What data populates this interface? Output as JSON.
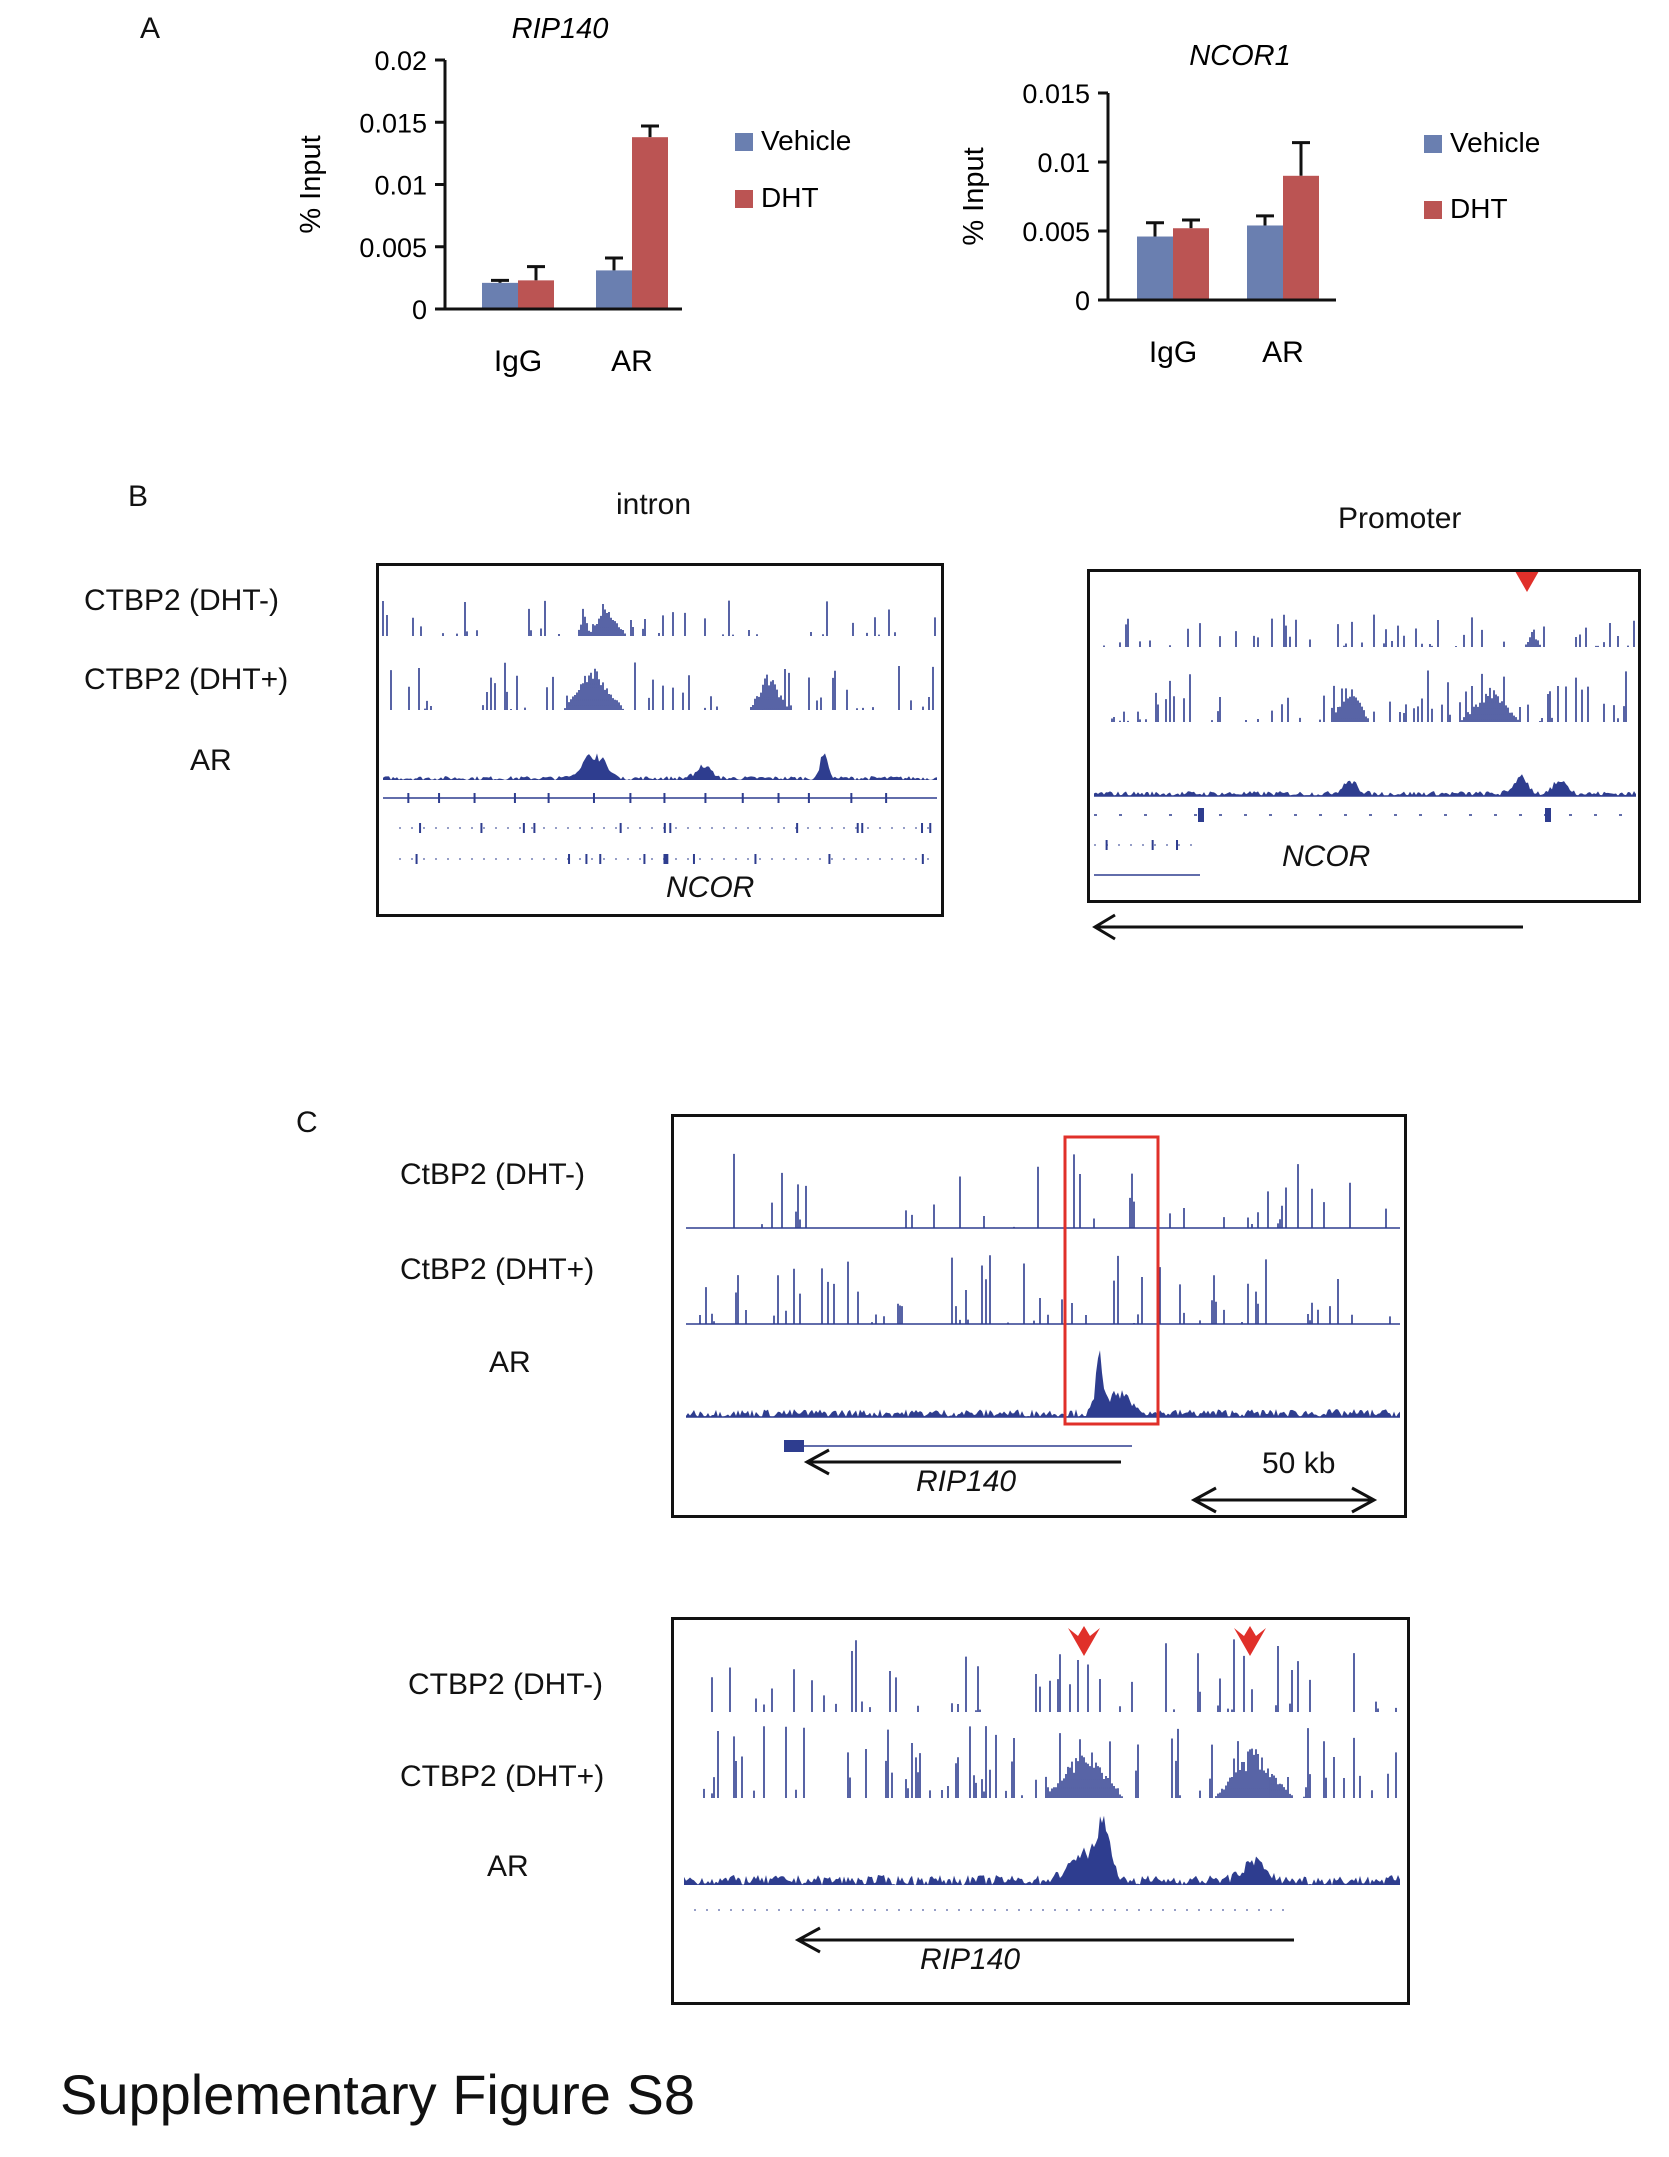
{
  "panels": {
    "a": "A",
    "b": "B",
    "c": "C"
  },
  "figure_title": "Supplementary Figure S8",
  "colors": {
    "vehicle": "#6a7fb0",
    "dht": "#bb5453",
    "track": "#2e3d8f",
    "highlight": "#e0302a"
  },
  "chart_data": [
    {
      "type": "bar",
      "title": "RIP140",
      "ylabel": "% Input",
      "xlabel": "",
      "ylim": [
        0,
        0.02
      ],
      "yticks": [
        "0",
        "0.005",
        "0.01",
        "0.015",
        "0.02"
      ],
      "categories": [
        "IgG",
        "AR"
      ],
      "legend": "right",
      "series": [
        {
          "name": "Vehicle",
          "values": [
            0.0021,
            0.0031
          ],
          "errors": [
            0.0002,
            0.001
          ]
        },
        {
          "name": "DHT",
          "values": [
            0.0023,
            0.0138
          ],
          "errors": [
            0.0011,
            0.0009
          ]
        }
      ]
    },
    {
      "type": "bar",
      "title": "NCOR1",
      "ylabel": "% Input",
      "xlabel": "",
      "ylim": [
        0,
        0.015
      ],
      "yticks": [
        "0",
        "0.005",
        "0.01",
        "0.015"
      ],
      "categories": [
        "IgG",
        "AR"
      ],
      "legend": "right",
      "series": [
        {
          "name": "Vehicle",
          "values": [
            0.0046,
            0.0054
          ],
          "errors": [
            0.001,
            0.0007
          ]
        },
        {
          "name": "DHT",
          "values": [
            0.0052,
            0.009
          ],
          "errors": [
            0.0006,
            0.0024
          ]
        }
      ]
    }
  ],
  "panel_b": {
    "left": {
      "region": "intron",
      "tracks": [
        "CTBP2 (DHT-)",
        "CTBP2 (DHT+)",
        "AR"
      ],
      "gene": "NCOR"
    },
    "right": {
      "region": "Promoter",
      "gene": "NCOR"
    }
  },
  "panel_c": {
    "top": {
      "tracks": [
        "CtBP2 (DHT-)",
        "CtBP2 (DHT+)",
        "AR"
      ],
      "gene": "RIP140",
      "scale": "50 kb"
    },
    "bottom": {
      "tracks": [
        "CTBP2 (DHT-)",
        "CTBP2 (DHT+)",
        "AR"
      ],
      "gene": "RIP140"
    }
  }
}
